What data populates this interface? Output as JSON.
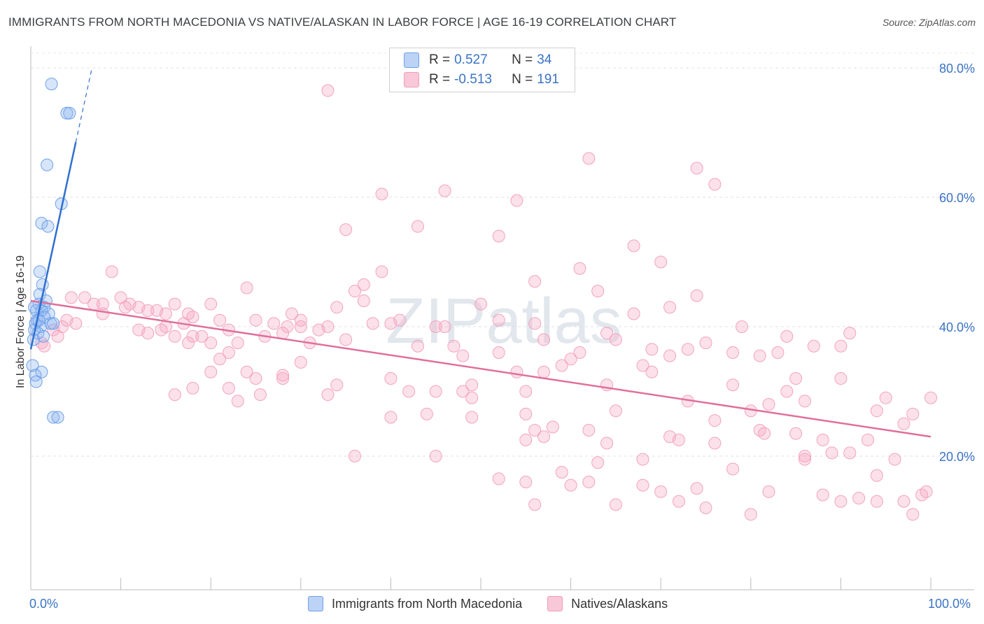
{
  "header": {
    "title": "IMMIGRANTS FROM NORTH MACEDONIA VS NATIVE/ALASKAN IN LABOR FORCE | AGE 16-19 CORRELATION CHART",
    "source": "Source: ZipAtlas.com"
  },
  "watermark": "ZIPatlas",
  "legend": {
    "r_label": "R =",
    "n_label": "N =",
    "series1": {
      "r": "0.527",
      "n": "34"
    },
    "series2": {
      "r": "-0.513",
      "n": "191"
    }
  },
  "chart_data": {
    "type": "scatter",
    "title": "IMMIGRANTS FROM NORTH MACEDONIA VS NATIVE/ALASKAN IN LABOR FORCE | AGE 16-19 CORRELATION CHART",
    "xlabel": "",
    "ylabel": "In Labor Force | Age 16-19",
    "xlim": [
      0,
      100
    ],
    "ylim": [
      0,
      85
    ],
    "x_tick_labels": [
      "0.0%",
      "100.0%"
    ],
    "y_ticks": [
      20,
      40,
      60,
      80
    ],
    "y_tick_labels": [
      "20.0%",
      "40.0%",
      "60.0%",
      "80.0%"
    ],
    "grid": true,
    "legend_position": "top-center",
    "colors": {
      "series1": "#6fa0e8",
      "series2": "#f29bb8",
      "line1": "#2f6fd0",
      "line2": "#e0709a"
    },
    "series": [
      {
        "name": "Immigrants from North Macedonia",
        "r": 0.527,
        "n": 34,
        "trend": {
          "x": [
            0,
            5
          ],
          "y": [
            36.5,
            68.5
          ],
          "dashed_to": [
            6.8,
            80.0
          ]
        },
        "points": [
          [
            2.3,
            77.5
          ],
          [
            4.0,
            73.0
          ],
          [
            4.3,
            73.0
          ],
          [
            1.8,
            65.0
          ],
          [
            3.4,
            59.0
          ],
          [
            1.2,
            56.0
          ],
          [
            1.9,
            55.5
          ],
          [
            1.0,
            48.5
          ],
          [
            1.3,
            46.5
          ],
          [
            1.0,
            45.0
          ],
          [
            0.9,
            43.5
          ],
          [
            1.5,
            43.0
          ],
          [
            0.6,
            42.5
          ],
          [
            1.2,
            42.5
          ],
          [
            2.0,
            42.0
          ],
          [
            1.5,
            41.5
          ],
          [
            0.7,
            41.0
          ],
          [
            0.5,
            40.5
          ],
          [
            1.1,
            40.0
          ],
          [
            2.2,
            40.5
          ],
          [
            2.5,
            40.5
          ],
          [
            0.4,
            39.5
          ],
          [
            0.8,
            39.0
          ],
          [
            1.4,
            38.5
          ],
          [
            0.3,
            38.0
          ],
          [
            0.2,
            34.0
          ],
          [
            1.2,
            33.0
          ],
          [
            0.5,
            32.5
          ],
          [
            0.6,
            31.5
          ],
          [
            2.5,
            26.0
          ],
          [
            3.0,
            26.0
          ],
          [
            0.4,
            43.0
          ],
          [
            1.7,
            44.0
          ],
          [
            0.9,
            41.0
          ]
        ]
      },
      {
        "name": "Natives/Alaskans",
        "r": -0.513,
        "n": 191,
        "trend": {
          "x": [
            0,
            100
          ],
          "y": [
            44.0,
            23.0
          ]
        },
        "points": [
          [
            33,
            76.5
          ],
          [
            62,
            66
          ],
          [
            74,
            64.5
          ],
          [
            76,
            62
          ],
          [
            39,
            60.5
          ],
          [
            46,
            61
          ],
          [
            54,
            59.5
          ],
          [
            35,
            55
          ],
          [
            43,
            55.5
          ],
          [
            52,
            54
          ],
          [
            67,
            52.5
          ],
          [
            70,
            50
          ],
          [
            9,
            48.5
          ],
          [
            39,
            48.5
          ],
          [
            61,
            49
          ],
          [
            56,
            47
          ],
          [
            24,
            46
          ],
          [
            37,
            46.5
          ],
          [
            36,
            45.5
          ],
          [
            63,
            45.5
          ],
          [
            74,
            44.8
          ],
          [
            4.5,
            44.5
          ],
          [
            6,
            44.5
          ],
          [
            10,
            44.5
          ],
          [
            16,
            43.5
          ],
          [
            11,
            43.5
          ],
          [
            8,
            43.5
          ],
          [
            7,
            43.5
          ],
          [
            12,
            43
          ],
          [
            10.5,
            43
          ],
          [
            13,
            42.5
          ],
          [
            15,
            42
          ],
          [
            17.5,
            42
          ],
          [
            18,
            41.5
          ],
          [
            20,
            43.5
          ],
          [
            8,
            42
          ],
          [
            4,
            41
          ],
          [
            5,
            40.5
          ],
          [
            3.5,
            40
          ],
          [
            2.5,
            39.5
          ],
          [
            1.2,
            37.5
          ],
          [
            1.5,
            37
          ],
          [
            3,
            38.5
          ],
          [
            14,
            42.5
          ],
          [
            21,
            41
          ],
          [
            25,
            41
          ],
          [
            29,
            42
          ],
          [
            34,
            43
          ],
          [
            37,
            44
          ],
          [
            41,
            41
          ],
          [
            46,
            40
          ],
          [
            50,
            43.5
          ],
          [
            52,
            41
          ],
          [
            56,
            40.5
          ],
          [
            67,
            42
          ],
          [
            71,
            43
          ],
          [
            27,
            40.5
          ],
          [
            30,
            40
          ],
          [
            22,
            39.5
          ],
          [
            17,
            40.5
          ],
          [
            12,
            39.5
          ],
          [
            13,
            39
          ],
          [
            18,
            38.5
          ],
          [
            20,
            37.5
          ],
          [
            23,
            37.5
          ],
          [
            19,
            38.5
          ],
          [
            17.5,
            37.5
          ],
          [
            16,
            38.5
          ],
          [
            15,
            40
          ],
          [
            14.5,
            39.5
          ],
          [
            26,
            38.5
          ],
          [
            28,
            39
          ],
          [
            33,
            40
          ],
          [
            30,
            41
          ],
          [
            28.5,
            40
          ],
          [
            32,
            39.5
          ],
          [
            31,
            37.5
          ],
          [
            35,
            38
          ],
          [
            38,
            40.5
          ],
          [
            40,
            40.5
          ],
          [
            43,
            37
          ],
          [
            45,
            40
          ],
          [
            47,
            37
          ],
          [
            48,
            35.5
          ],
          [
            52,
            36
          ],
          [
            57,
            38
          ],
          [
            61,
            36
          ],
          [
            65,
            38
          ],
          [
            68,
            34
          ],
          [
            71,
            35.5
          ],
          [
            75,
            37.5
          ],
          [
            78,
            36
          ],
          [
            79,
            40
          ],
          [
            81,
            35.5
          ],
          [
            84,
            38.5
          ],
          [
            87,
            37
          ],
          [
            90,
            37
          ],
          [
            91,
            39
          ],
          [
            83,
            36
          ],
          [
            73,
            36.5
          ],
          [
            60,
            35
          ],
          [
            59,
            34
          ],
          [
            54,
            33
          ],
          [
            48,
            30
          ],
          [
            45,
            30
          ],
          [
            42,
            30
          ],
          [
            33,
            29.5
          ],
          [
            34,
            31
          ],
          [
            28,
            32.5
          ],
          [
            30,
            34.5
          ],
          [
            24,
            33
          ],
          [
            25.5,
            29.5
          ],
          [
            25,
            32
          ],
          [
            22,
            30.5
          ],
          [
            18,
            30.5
          ],
          [
            16,
            29.5
          ],
          [
            20,
            33
          ],
          [
            23,
            28.5
          ],
          [
            49,
            31
          ],
          [
            55,
            30
          ],
          [
            49,
            29
          ],
          [
            55,
            26.5
          ],
          [
            57,
            33
          ],
          [
            64,
            31
          ],
          [
            69,
            33
          ],
          [
            73,
            28.5
          ],
          [
            78,
            31
          ],
          [
            85,
            32
          ],
          [
            90,
            32
          ],
          [
            95,
            29
          ],
          [
            100,
            29
          ],
          [
            98,
            26.5
          ],
          [
            97,
            25
          ],
          [
            94,
            27
          ],
          [
            93,
            22.5
          ],
          [
            88,
            22.5
          ],
          [
            85,
            23.5
          ],
          [
            82,
            28
          ],
          [
            80,
            27
          ],
          [
            76,
            25.5
          ],
          [
            71,
            23
          ],
          [
            68,
            19.5
          ],
          [
            65,
            27
          ],
          [
            62,
            24
          ],
          [
            57,
            23
          ],
          [
            55,
            22.5
          ],
          [
            49,
            26
          ],
          [
            44,
            26.5
          ],
          [
            40,
            26
          ],
          [
            36,
            20
          ],
          [
            45,
            20
          ],
          [
            52,
            16.5
          ],
          [
            55,
            16
          ],
          [
            60,
            15.5
          ],
          [
            62,
            16
          ],
          [
            68,
            15.5
          ],
          [
            70,
            14.5
          ],
          [
            72,
            13
          ],
          [
            78,
            18
          ],
          [
            80,
            11
          ],
          [
            82,
            14.5
          ],
          [
            86,
            19.5
          ],
          [
            88,
            14
          ],
          [
            90,
            13
          ],
          [
            91,
            20.5
          ],
          [
            92,
            13.5
          ],
          [
            94,
            17
          ],
          [
            96,
            19.5
          ],
          [
            97,
            13
          ],
          [
            99,
            14
          ],
          [
            99.5,
            14.5
          ],
          [
            98,
            11
          ],
          [
            94,
            13
          ],
          [
            89,
            20.5
          ],
          [
            86,
            20
          ],
          [
            76,
            22
          ],
          [
            75,
            12
          ],
          [
            74,
            15
          ],
          [
            72,
            22.5
          ],
          [
            65,
            12.5
          ],
          [
            63,
            19
          ],
          [
            59,
            17.5
          ],
          [
            58,
            24.5
          ],
          [
            56,
            12.5
          ],
          [
            64,
            22
          ],
          [
            81,
            24
          ],
          [
            84,
            30
          ],
          [
            86,
            28.5
          ],
          [
            81.5,
            23.5
          ],
          [
            69,
            36.5
          ],
          [
            64,
            39
          ],
          [
            40,
            32
          ],
          [
            56,
            24
          ],
          [
            28,
            32
          ],
          [
            21,
            35
          ],
          [
            22,
            36
          ]
        ]
      }
    ]
  },
  "bottom_legend": {
    "series1": "Immigrants from North Macedonia",
    "series2": "Natives/Alaskans"
  }
}
